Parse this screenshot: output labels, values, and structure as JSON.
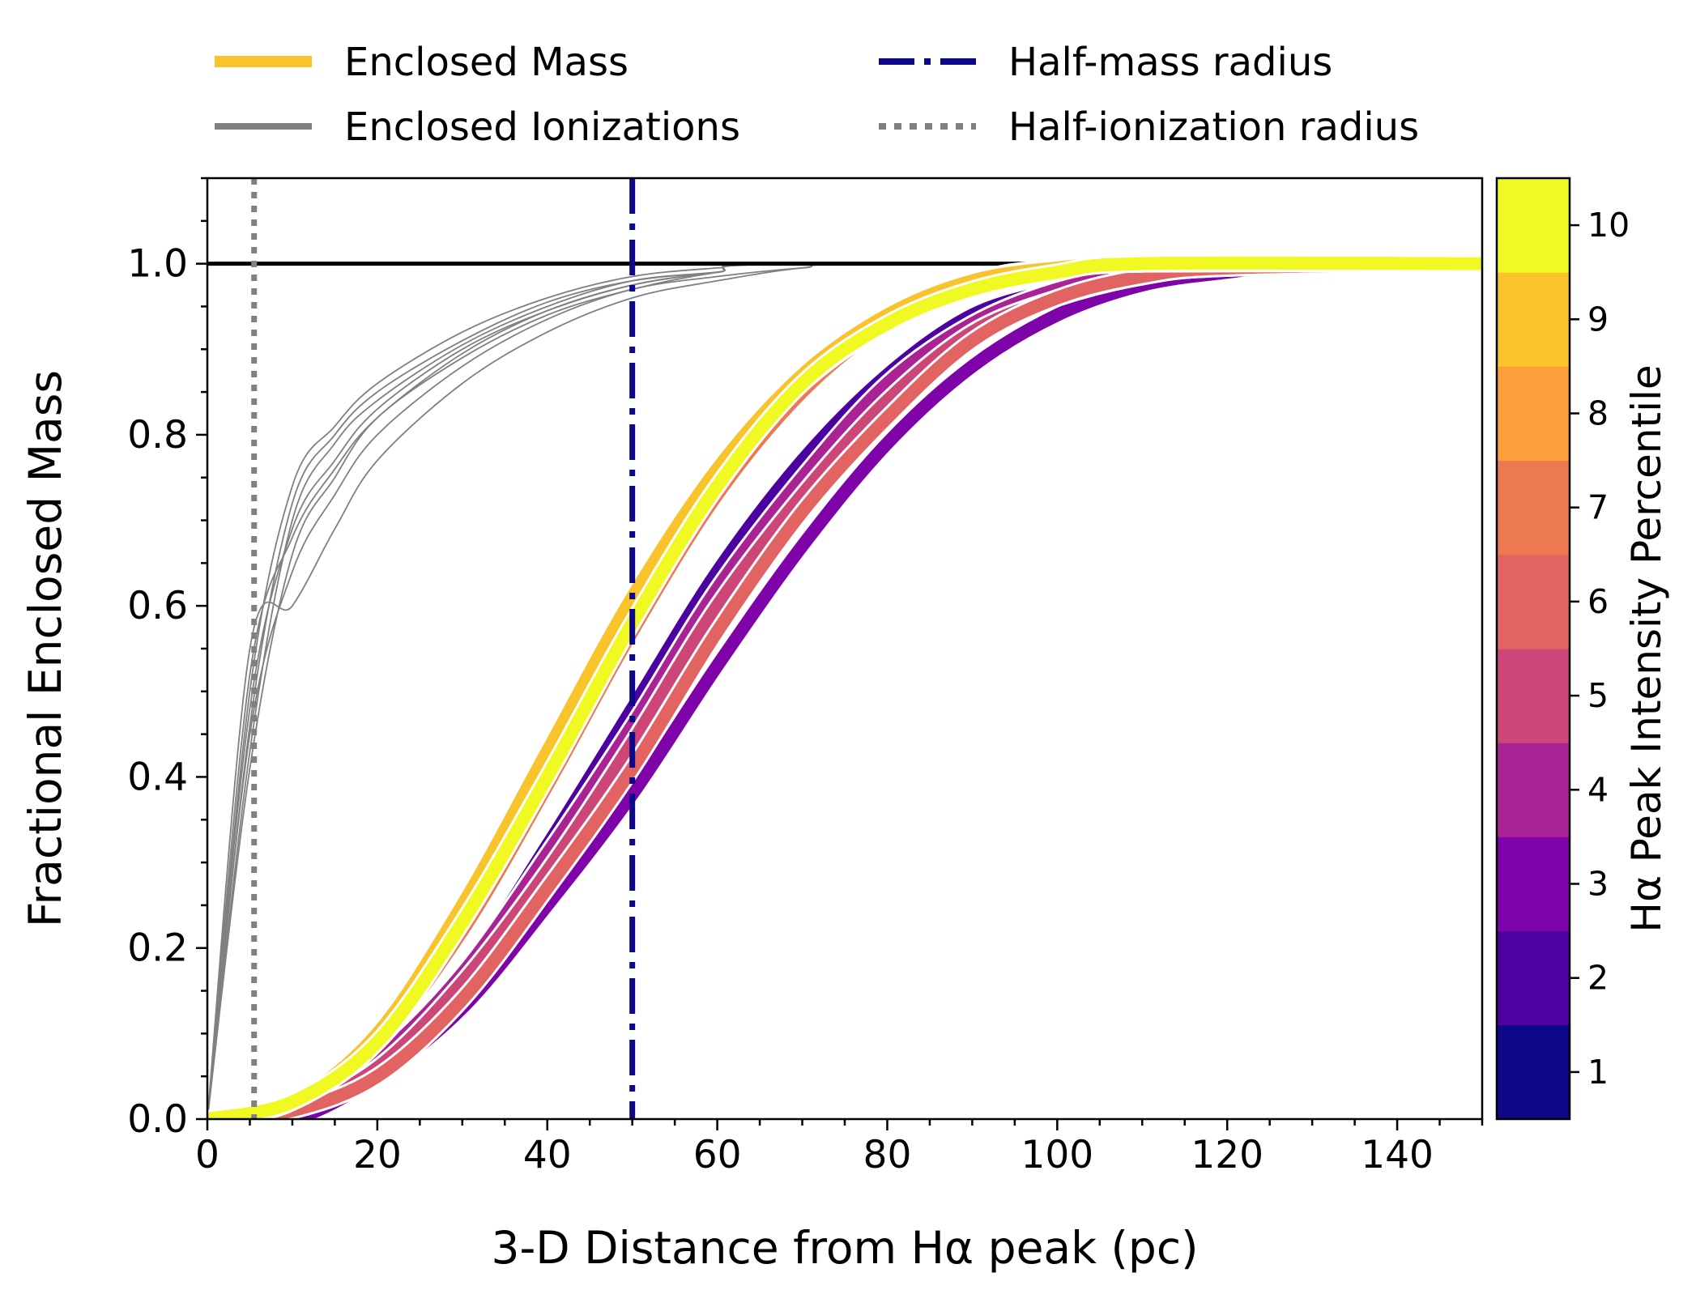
{
  "chart_data": {
    "type": "line",
    "xlabel": "3-D Distance from Hα peak (pc)",
    "ylabel": "Fractional Enclosed Mass",
    "xlim": [
      0,
      150
    ],
    "ylim": [
      0,
      1.1
    ],
    "xticks": [
      0,
      20,
      40,
      60,
      80,
      100,
      120,
      140
    ],
    "xtick_labels": [
      "0",
      "20",
      "40",
      "60",
      "80",
      "100",
      "120",
      "140"
    ],
    "yticks": [
      0.0,
      0.2,
      0.4,
      0.6,
      0.8,
      1.0
    ],
    "ytick_labels": [
      "0.0",
      "0.2",
      "0.4",
      "0.6",
      "0.8",
      "1.0"
    ],
    "grid": false,
    "legend": {
      "placement": "top, above plot, two columns",
      "entries": [
        {
          "label": "Enclosed Mass",
          "style": "solid-thick",
          "color": "#f9c32c"
        },
        {
          "label": "Enclosed Ionizations",
          "style": "solid",
          "color": "#808080"
        },
        {
          "label": "Half-mass radius",
          "style": "dashdot",
          "color": "#0d0887"
        },
        {
          "label": "Half-ionization radius",
          "style": "dotted",
          "color": "#808080"
        }
      ]
    },
    "reference_lines": {
      "unity_y": 1.0,
      "half_mass_radius_x": 50,
      "half_ionization_radius_x": 5.5
    },
    "mass_series": [
      {
        "percentile": 1,
        "color": "#0d0887",
        "values": [
          [
            0,
            0.0
          ],
          [
            10,
            0.02
          ],
          [
            20,
            0.1
          ],
          [
            30,
            0.24
          ],
          [
            40,
            0.43
          ],
          [
            50,
            0.61
          ],
          [
            60,
            0.76
          ],
          [
            70,
            0.87
          ],
          [
            80,
            0.94
          ],
          [
            90,
            0.98
          ],
          [
            100,
            0.995
          ],
          [
            120,
            1.0
          ],
          [
            150,
            1.0
          ]
        ]
      },
      {
        "percentile": 2,
        "color": "#4c02a1",
        "values": [
          [
            0,
            0.0
          ],
          [
            10,
            0.01
          ],
          [
            20,
            0.07
          ],
          [
            30,
            0.17
          ],
          [
            40,
            0.32
          ],
          [
            50,
            0.48
          ],
          [
            60,
            0.64
          ],
          [
            70,
            0.77
          ],
          [
            80,
            0.87
          ],
          [
            90,
            0.94
          ],
          [
            100,
            0.97
          ],
          [
            110,
            0.99
          ],
          [
            120,
            1.0
          ],
          [
            150,
            1.0
          ]
        ]
      },
      {
        "percentile": 3,
        "color": "#7e03a8",
        "values": [
          [
            0,
            0.0
          ],
          [
            10,
            0.0
          ],
          [
            20,
            0.05
          ],
          [
            30,
            0.13
          ],
          [
            40,
            0.25
          ],
          [
            50,
            0.38
          ],
          [
            60,
            0.53
          ],
          [
            70,
            0.67
          ],
          [
            80,
            0.79
          ],
          [
            90,
            0.88
          ],
          [
            100,
            0.94
          ],
          [
            110,
            0.975
          ],
          [
            120,
            0.99
          ],
          [
            130,
            1.0
          ],
          [
            150,
            1.0
          ]
        ]
      },
      {
        "percentile": 4,
        "color": "#a92395",
        "values": [
          [
            0,
            0.0
          ],
          [
            10,
            0.01
          ],
          [
            20,
            0.07
          ],
          [
            30,
            0.17
          ],
          [
            40,
            0.31
          ],
          [
            50,
            0.46
          ],
          [
            60,
            0.62
          ],
          [
            70,
            0.75
          ],
          [
            80,
            0.86
          ],
          [
            90,
            0.93
          ],
          [
            100,
            0.97
          ],
          [
            110,
            0.99
          ],
          [
            120,
            1.0
          ],
          [
            150,
            1.0
          ]
        ]
      },
      {
        "percentile": 5,
        "color": "#cc4778",
        "values": [
          [
            0,
            0.0
          ],
          [
            10,
            0.01
          ],
          [
            20,
            0.06
          ],
          [
            30,
            0.16
          ],
          [
            40,
            0.29
          ],
          [
            50,
            0.44
          ],
          [
            60,
            0.6
          ],
          [
            70,
            0.73
          ],
          [
            80,
            0.84
          ],
          [
            90,
            0.92
          ],
          [
            100,
            0.96
          ],
          [
            110,
            0.985
          ],
          [
            120,
            0.995
          ],
          [
            150,
            1.0
          ]
        ]
      },
      {
        "percentile": 6,
        "color": "#e16462",
        "values": [
          [
            0,
            0.0
          ],
          [
            10,
            0.01
          ],
          [
            20,
            0.05
          ],
          [
            30,
            0.14
          ],
          [
            40,
            0.27
          ],
          [
            50,
            0.41
          ],
          [
            60,
            0.57
          ],
          [
            70,
            0.71
          ],
          [
            80,
            0.82
          ],
          [
            90,
            0.91
          ],
          [
            100,
            0.96
          ],
          [
            110,
            0.985
          ],
          [
            120,
            0.995
          ],
          [
            150,
            1.0
          ]
        ]
      },
      {
        "percentile": 7,
        "color": "#ed7953",
        "values": [
          [
            0,
            0.0
          ],
          [
            10,
            0.02
          ],
          [
            20,
            0.09
          ],
          [
            30,
            0.22
          ],
          [
            40,
            0.39
          ],
          [
            50,
            0.57
          ],
          [
            60,
            0.73
          ],
          [
            70,
            0.85
          ],
          [
            80,
            0.93
          ],
          [
            90,
            0.97
          ],
          [
            100,
            0.99
          ],
          [
            110,
            1.0
          ],
          [
            150,
            1.0
          ]
        ]
      },
      {
        "percentile": 8,
        "color": "#fb9f3a",
        "values": [
          [
            0,
            0.0
          ],
          [
            10,
            0.02
          ],
          [
            20,
            0.1
          ],
          [
            30,
            0.24
          ],
          [
            40,
            0.42
          ],
          [
            50,
            0.6
          ],
          [
            60,
            0.75
          ],
          [
            70,
            0.86
          ],
          [
            80,
            0.93
          ],
          [
            90,
            0.97
          ],
          [
            100,
            0.99
          ],
          [
            110,
            1.0
          ],
          [
            150,
            1.0
          ]
        ]
      },
      {
        "percentile": 9,
        "color": "#f9c32c",
        "values": [
          [
            0,
            0.0
          ],
          [
            10,
            0.02
          ],
          [
            20,
            0.1
          ],
          [
            30,
            0.25
          ],
          [
            40,
            0.43
          ],
          [
            50,
            0.61
          ],
          [
            60,
            0.76
          ],
          [
            70,
            0.87
          ],
          [
            80,
            0.94
          ],
          [
            90,
            0.98
          ],
          [
            100,
            0.995
          ],
          [
            110,
            1.0
          ],
          [
            150,
            1.0
          ]
        ]
      },
      {
        "percentile": 10,
        "color": "#f0f921",
        "values": [
          [
            0,
            0.0
          ],
          [
            10,
            0.02
          ],
          [
            20,
            0.09
          ],
          [
            30,
            0.23
          ],
          [
            40,
            0.4
          ],
          [
            50,
            0.58
          ],
          [
            60,
            0.74
          ],
          [
            70,
            0.86
          ],
          [
            80,
            0.93
          ],
          [
            90,
            0.97
          ],
          [
            100,
            0.99
          ],
          [
            110,
            1.0
          ],
          [
            150,
            1.0
          ]
        ]
      }
    ],
    "ionization_series": [
      {
        "values": [
          [
            0,
            0.0
          ],
          [
            5,
            0.5
          ],
          [
            10,
            0.74
          ],
          [
            15,
            0.81
          ],
          [
            20,
            0.86
          ],
          [
            30,
            0.92
          ],
          [
            40,
            0.96
          ],
          [
            50,
            0.985
          ],
          [
            60,
            0.995
          ],
          [
            70,
            1.0
          ],
          [
            150,
            1.0
          ]
        ]
      },
      {
        "values": [
          [
            0,
            0.0
          ],
          [
            5,
            0.46
          ],
          [
            10,
            0.72
          ],
          [
            15,
            0.8
          ],
          [
            20,
            0.85
          ],
          [
            30,
            0.91
          ],
          [
            40,
            0.955
          ],
          [
            50,
            0.98
          ],
          [
            60,
            0.99
          ],
          [
            70,
            1.0
          ],
          [
            150,
            1.0
          ]
        ]
      },
      {
        "values": [
          [
            0,
            0.0
          ],
          [
            5,
            0.43
          ],
          [
            10,
            0.7
          ],
          [
            15,
            0.79
          ],
          [
            20,
            0.84
          ],
          [
            30,
            0.905
          ],
          [
            40,
            0.95
          ],
          [
            50,
            0.98
          ],
          [
            60,
            0.99
          ],
          [
            70,
            1.0
          ],
          [
            150,
            1.0
          ]
        ]
      },
      {
        "values": [
          [
            0,
            0.0
          ],
          [
            5,
            0.48
          ],
          [
            10,
            0.69
          ],
          [
            15,
            0.77
          ],
          [
            20,
            0.83
          ],
          [
            30,
            0.9
          ],
          [
            40,
            0.945
          ],
          [
            50,
            0.975
          ],
          [
            60,
            0.99
          ],
          [
            70,
            1.0
          ],
          [
            150,
            1.0
          ]
        ]
      },
      {
        "values": [
          [
            0,
            0.0
          ],
          [
            5,
            0.41
          ],
          [
            10,
            0.66
          ],
          [
            15,
            0.75
          ],
          [
            20,
            0.82
          ],
          [
            30,
            0.89
          ],
          [
            40,
            0.94
          ],
          [
            50,
            0.97
          ],
          [
            60,
            0.99
          ],
          [
            70,
            1.0
          ],
          [
            150,
            1.0
          ]
        ]
      },
      {
        "values": [
          [
            0,
            0.0
          ],
          [
            5,
            0.45
          ],
          [
            10,
            0.64
          ],
          [
            15,
            0.73
          ],
          [
            20,
            0.8
          ],
          [
            30,
            0.88
          ],
          [
            40,
            0.935
          ],
          [
            50,
            0.97
          ],
          [
            60,
            0.985
          ],
          [
            70,
            0.995
          ],
          [
            80,
            1.0
          ],
          [
            150,
            1.0
          ]
        ]
      },
      {
        "values": [
          [
            0,
            0.0
          ],
          [
            5,
            0.55
          ],
          [
            10,
            0.6
          ],
          [
            15,
            0.69
          ],
          [
            20,
            0.77
          ],
          [
            30,
            0.86
          ],
          [
            40,
            0.92
          ],
          [
            50,
            0.96
          ],
          [
            60,
            0.98
          ],
          [
            70,
            0.995
          ],
          [
            80,
            1.0
          ],
          [
            150,
            1.0
          ]
        ]
      },
      {
        "values": [
          [
            0,
            0.0
          ],
          [
            5,
            0.52
          ],
          [
            10,
            0.68
          ],
          [
            15,
            0.76
          ],
          [
            20,
            0.82
          ],
          [
            30,
            0.895
          ],
          [
            40,
            0.945
          ],
          [
            50,
            0.975
          ],
          [
            60,
            0.99
          ],
          [
            70,
            1.0
          ],
          [
            150,
            1.0
          ]
        ]
      }
    ],
    "colorbar": {
      "label": "Hα Peak Intensity Percentile",
      "ticks": [
        "1",
        "2",
        "3",
        "4",
        "5",
        "6",
        "7",
        "8",
        "9",
        "10"
      ],
      "colors": [
        "#0d0887",
        "#4c02a1",
        "#7e03a8",
        "#a92395",
        "#cc4778",
        "#e16462",
        "#ed7953",
        "#fb9f3a",
        "#f9c32c",
        "#f0f921"
      ]
    }
  }
}
